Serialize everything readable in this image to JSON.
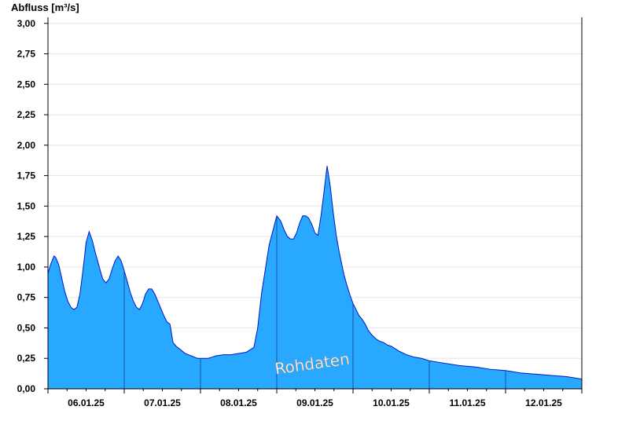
{
  "chart_data": {
    "type": "area",
    "ylabel": "Abfluss [m³/s]",
    "watermark": "Rohdaten",
    "ylim": [
      0,
      3.05
    ],
    "yticks": [
      {
        "value": 0.0,
        "label": "0,00"
      },
      {
        "value": 0.25,
        "label": "0,25"
      },
      {
        "value": 0.5,
        "label": "0,50"
      },
      {
        "value": 0.75,
        "label": "0,75"
      },
      {
        "value": 1.0,
        "label": "1,00"
      },
      {
        "value": 1.25,
        "label": "1,25"
      },
      {
        "value": 1.5,
        "label": "1,50"
      },
      {
        "value": 1.75,
        "label": "1,75"
      },
      {
        "value": 2.0,
        "label": "2,00"
      },
      {
        "value": 2.25,
        "label": "2,25"
      },
      {
        "value": 2.5,
        "label": "2,50"
      },
      {
        "value": 2.75,
        "label": "2,75"
      },
      {
        "value": 3.0,
        "label": "3,00"
      }
    ],
    "xlim": [
      5.0,
      12.0
    ],
    "xticks": [
      {
        "value": 5.5,
        "label": "06.01.25"
      },
      {
        "value": 6.5,
        "label": "07.01.25"
      },
      {
        "value": 7.5,
        "label": "08.01.25"
      },
      {
        "value": 8.5,
        "label": "09.01.25"
      },
      {
        "value": 9.5,
        "label": "10.01.25"
      },
      {
        "value": 10.5,
        "label": "11.01.25"
      },
      {
        "value": 11.5,
        "label": "12.01.25"
      }
    ],
    "day_boundaries": [
      6,
      7,
      8,
      9,
      10,
      11
    ],
    "grid": true,
    "colors": {
      "fill": "#29a8ff",
      "line": "#0018c8",
      "grid": "#e6e6e6"
    },
    "series": [
      {
        "x": [
          5.0,
          5.04,
          5.08,
          5.1,
          5.14,
          5.18,
          5.22,
          5.26,
          5.3,
          5.34,
          5.38,
          5.42,
          5.46,
          5.5,
          5.54,
          5.58,
          5.62,
          5.66,
          5.7,
          5.72,
          5.76,
          5.8,
          5.84,
          5.88,
          5.92,
          5.96,
          6.0,
          6.04,
          6.08,
          6.12,
          6.16,
          6.2,
          6.24,
          6.28,
          6.32,
          6.36,
          6.4,
          6.44,
          6.48,
          6.52,
          6.56,
          6.6,
          6.64,
          6.68,
          6.72,
          6.76,
          6.8,
          6.84,
          6.88,
          6.92,
          6.96,
          7.0,
          7.01,
          7.05,
          7.1,
          7.15,
          7.2,
          7.3,
          7.4,
          7.5,
          7.6,
          7.7,
          7.75,
          7.8,
          7.9,
          8.0,
          8.05,
          8.1,
          8.14,
          8.18,
          8.22,
          8.26,
          8.3,
          8.34,
          8.38,
          8.42,
          8.46,
          8.5,
          8.54,
          8.58,
          8.62,
          8.66,
          8.7,
          8.74,
          8.78,
          8.82,
          8.86,
          8.88,
          8.92,
          8.96,
          9.0,
          9.04,
          9.08,
          9.12,
          9.16,
          9.2,
          9.25,
          9.3,
          9.35,
          9.4,
          9.45,
          9.5,
          9.55,
          9.6,
          9.7,
          9.8,
          9.9,
          10.0,
          10.2,
          10.4,
          10.6,
          10.8,
          11.0,
          11.2,
          11.4,
          11.6,
          11.8,
          11.9,
          12.0
        ],
        "y": [
          0.95,
          1.03,
          1.09,
          1.08,
          1.02,
          0.91,
          0.8,
          0.72,
          0.67,
          0.65,
          0.67,
          0.78,
          0.98,
          1.2,
          1.29,
          1.22,
          1.12,
          1.03,
          0.94,
          0.9,
          0.87,
          0.9,
          0.98,
          1.05,
          1.09,
          1.05,
          0.97,
          0.88,
          0.79,
          0.72,
          0.67,
          0.65,
          0.7,
          0.78,
          0.82,
          0.82,
          0.78,
          0.72,
          0.66,
          0.6,
          0.55,
          0.53,
          0.38,
          0.35,
          0.33,
          0.31,
          0.29,
          0.28,
          0.27,
          0.26,
          0.25,
          0.25,
          0.25,
          0.25,
          0.25,
          0.26,
          0.27,
          0.28,
          0.28,
          0.29,
          0.3,
          0.34,
          0.5,
          0.78,
          1.18,
          1.42,
          1.38,
          1.3,
          1.25,
          1.23,
          1.23,
          1.28,
          1.36,
          1.42,
          1.42,
          1.4,
          1.35,
          1.28,
          1.26,
          1.42,
          1.62,
          1.83,
          1.67,
          1.45,
          1.26,
          1.12,
          1.0,
          0.94,
          0.85,
          0.77,
          0.7,
          0.65,
          0.6,
          0.57,
          0.53,
          0.48,
          0.44,
          0.41,
          0.39,
          0.38,
          0.36,
          0.35,
          0.33,
          0.31,
          0.28,
          0.26,
          0.25,
          0.23,
          0.21,
          0.19,
          0.18,
          0.16,
          0.15,
          0.13,
          0.12,
          0.11,
          0.1,
          0.09,
          0.08
        ]
      }
    ]
  }
}
